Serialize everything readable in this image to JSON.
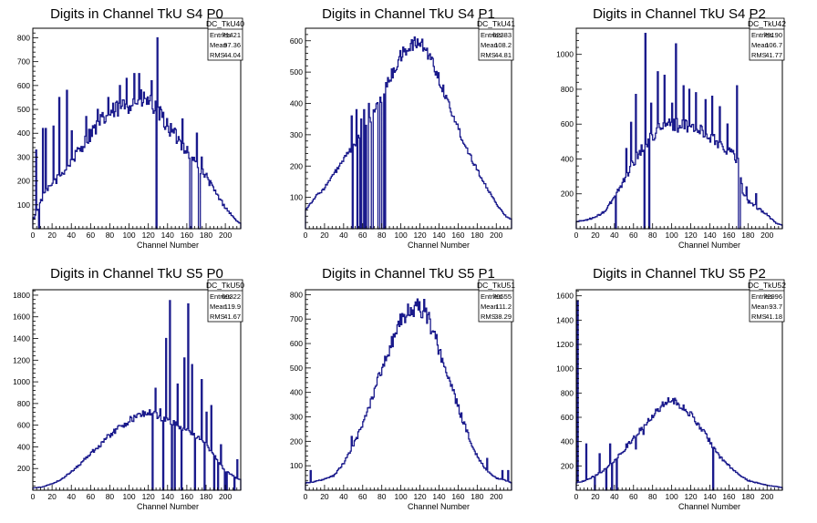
{
  "chart_data": [
    {
      "type": "histogram",
      "title": "Digits in Channel TkU S4 P0",
      "xlabel": "Channel Number",
      "ylabel": "",
      "xlim": [
        0,
        216
      ],
      "ylim": [
        0,
        840
      ],
      "xticks": [
        0,
        20,
        40,
        60,
        80,
        100,
        120,
        140,
        160,
        180,
        200
      ],
      "yticks": [
        100,
        200,
        300,
        400,
        500,
        600,
        700,
        800
      ],
      "stats": {
        "name": "DC_TkU40",
        "rows": [
          [
            "Entries",
            "71421"
          ],
          [
            "Mean",
            "97.36"
          ],
          [
            "RMS",
            "44.04"
          ]
        ]
      },
      "profile": [
        [
          0,
          40
        ],
        [
          5,
          80
        ],
        [
          10,
          130
        ],
        [
          15,
          160
        ],
        [
          20,
          185
        ],
        [
          30,
          230
        ],
        [
          40,
          280
        ],
        [
          50,
          340
        ],
        [
          60,
          400
        ],
        [
          70,
          445
        ],
        [
          80,
          480
        ],
        [
          90,
          505
        ],
        [
          100,
          525
        ],
        [
          110,
          540
        ],
        [
          120,
          535
        ],
        [
          130,
          490
        ],
        [
          140,
          430
        ],
        [
          150,
          380
        ],
        [
          160,
          330
        ],
        [
          170,
          270
        ],
        [
          180,
          220
        ],
        [
          190,
          150
        ],
        [
          200,
          90
        ],
        [
          210,
          40
        ],
        [
          216,
          20
        ]
      ],
      "spikes": [
        [
          3,
          330
        ],
        [
          10,
          420
        ],
        [
          13,
          420
        ],
        [
          21,
          430
        ],
        [
          27,
          550
        ],
        [
          35,
          580
        ],
        [
          40,
          410
        ],
        [
          55,
          470
        ],
        [
          67,
          500
        ],
        [
          78,
          550
        ],
        [
          90,
          600
        ],
        [
          97,
          630
        ],
        [
          105,
          650
        ],
        [
          110,
          650
        ],
        [
          123,
          620
        ],
        [
          129,
          800
        ],
        [
          140,
          430
        ],
        [
          155,
          460
        ],
        [
          170,
          400
        ],
        [
          175,
          300
        ]
      ],
      "dips": [
        [
          1,
          40
        ],
        [
          6,
          0
        ],
        [
          128,
          0
        ],
        [
          163,
          0
        ],
        [
          164,
          0
        ],
        [
          172,
          0
        ],
        [
          173,
          0
        ]
      ],
      "noise": 0.08
    },
    {
      "type": "histogram",
      "title": "Digits in Channel TkU S4 P1",
      "xlabel": "Channel Number",
      "ylabel": "",
      "xlim": [
        0,
        216
      ],
      "ylim": [
        0,
        640
      ],
      "xticks": [
        0,
        20,
        40,
        60,
        80,
        100,
        120,
        140,
        160,
        180,
        200
      ],
      "yticks": [
        100,
        200,
        300,
        400,
        500,
        600
      ],
      "stats": {
        "name": "DC_TkU41",
        "rows": [
          [
            "Entries",
            "62383"
          ],
          [
            "Mean",
            "108.2"
          ],
          [
            "RMS",
            "44.81"
          ]
        ]
      },
      "profile": [
        [
          0,
          60
        ],
        [
          10,
          100
        ],
        [
          20,
          130
        ],
        [
          30,
          175
        ],
        [
          40,
          220
        ],
        [
          50,
          260
        ],
        [
          60,
          310
        ],
        [
          70,
          360
        ],
        [
          80,
          420
        ],
        [
          90,
          490
        ],
        [
          100,
          550
        ],
        [
          110,
          585
        ],
        [
          120,
          595
        ],
        [
          130,
          555
        ],
        [
          140,
          480
        ],
        [
          150,
          400
        ],
        [
          160,
          320
        ],
        [
          170,
          250
        ],
        [
          180,
          190
        ],
        [
          190,
          130
        ],
        [
          200,
          80
        ],
        [
          210,
          40
        ],
        [
          216,
          30
        ]
      ],
      "spikes": [
        [
          48,
          360
        ],
        [
          53,
          380
        ],
        [
          58,
          350
        ],
        [
          61,
          380
        ],
        [
          66,
          400
        ],
        [
          78,
          420
        ],
        [
          82,
          430
        ]
      ],
      "dips": [
        [
          49,
          0
        ],
        [
          54,
          0
        ],
        [
          57,
          0
        ],
        [
          59,
          0
        ],
        [
          60,
          0
        ],
        [
          62,
          0
        ],
        [
          64,
          0
        ],
        [
          65,
          0
        ],
        [
          69,
          0
        ],
        [
          70,
          0
        ],
        [
          76,
          0
        ],
        [
          77,
          0
        ],
        [
          80,
          0
        ],
        [
          81,
          0
        ],
        [
          83,
          0
        ]
      ],
      "noise": 0.04
    },
    {
      "type": "histogram",
      "title": "Digits in Channel TkU S4 P2",
      "xlabel": "Channel Number",
      "ylabel": "",
      "xlim": [
        0,
        216
      ],
      "ylim": [
        0,
        1150
      ],
      "xticks": [
        0,
        20,
        40,
        60,
        80,
        100,
        120,
        140,
        160,
        180,
        200
      ],
      "yticks": [
        200,
        400,
        600,
        800,
        1000
      ],
      "stats": {
        "name": "DC_TkU42",
        "rows": [
          [
            "Entries",
            "79190"
          ],
          [
            "Mean",
            "106.7"
          ],
          [
            "RMS",
            "41.77"
          ]
        ]
      },
      "profile": [
        [
          0,
          40
        ],
        [
          10,
          50
        ],
        [
          20,
          65
        ],
        [
          30,
          100
        ],
        [
          40,
          180
        ],
        [
          50,
          280
        ],
        [
          60,
          380
        ],
        [
          70,
          470
        ],
        [
          80,
          540
        ],
        [
          90,
          580
        ],
        [
          100,
          600
        ],
        [
          110,
          590
        ],
        [
          120,
          580
        ],
        [
          130,
          560
        ],
        [
          140,
          530
        ],
        [
          150,
          490
        ],
        [
          160,
          450
        ],
        [
          170,
          390
        ],
        [
          175,
          200
        ],
        [
          180,
          160
        ],
        [
          190,
          120
        ],
        [
          200,
          80
        ],
        [
          210,
          30
        ],
        [
          216,
          20
        ]
      ],
      "spikes": [
        [
          52,
          460
        ],
        [
          57,
          610
        ],
        [
          62,
          770
        ],
        [
          72,
          1120
        ],
        [
          78,
          720
        ],
        [
          85,
          900
        ],
        [
          92,
          880
        ],
        [
          100,
          720
        ],
        [
          104,
          1060
        ],
        [
          112,
          820
        ],
        [
          118,
          800
        ],
        [
          125,
          780
        ],
        [
          135,
          740
        ],
        [
          142,
          760
        ],
        [
          150,
          700
        ],
        [
          158,
          600
        ],
        [
          168,
          820
        ],
        [
          178,
          240
        ],
        [
          188,
          200
        ]
      ],
      "dips": [
        [
          41,
          0
        ],
        [
          71,
          0
        ],
        [
          76,
          0
        ],
        [
          170,
          0
        ],
        [
          171,
          0
        ]
      ],
      "noise": 0.07
    },
    {
      "type": "histogram",
      "title": "Digits in Channel TkU S5 P0",
      "xlabel": "Channel Number",
      "ylabel": "",
      "xlim": [
        0,
        216
      ],
      "ylim": [
        0,
        1850
      ],
      "xticks": [
        0,
        20,
        40,
        60,
        80,
        100,
        120,
        140,
        160,
        180,
        200
      ],
      "yticks": [
        200,
        400,
        600,
        800,
        1000,
        1200,
        1400,
        1600,
        1800
      ],
      "stats": {
        "name": "DC_TkU50",
        "rows": [
          [
            "Entries",
            "60322"
          ],
          [
            "Mean",
            "119.9"
          ],
          [
            "RMS",
            "41.67"
          ]
        ]
      },
      "profile": [
        [
          0,
          20
        ],
        [
          10,
          30
        ],
        [
          20,
          60
        ],
        [
          30,
          100
        ],
        [
          40,
          170
        ],
        [
          50,
          250
        ],
        [
          60,
          340
        ],
        [
          70,
          420
        ],
        [
          80,
          510
        ],
        [
          90,
          580
        ],
        [
          100,
          640
        ],
        [
          110,
          690
        ],
        [
          120,
          720
        ],
        [
          125,
          710
        ],
        [
          130,
          680
        ],
        [
          140,
          640
        ],
        [
          150,
          600
        ],
        [
          160,
          560
        ],
        [
          170,
          500
        ],
        [
          180,
          420
        ],
        [
          190,
          300
        ],
        [
          200,
          180
        ],
        [
          210,
          120
        ],
        [
          216,
          100
        ]
      ],
      "spikes": [
        [
          127,
          940
        ],
        [
          132,
          750
        ],
        [
          138,
          1400
        ],
        [
          142,
          1750
        ],
        [
          150,
          980
        ],
        [
          157,
          1220
        ],
        [
          161,
          1720
        ],
        [
          165,
          1160
        ],
        [
          175,
          1020
        ],
        [
          180,
          720
        ],
        [
          185,
          780
        ],
        [
          195,
          420
        ],
        [
          212,
          280
        ]
      ],
      "dips": [
        [
          124,
          0
        ],
        [
          135,
          0
        ],
        [
          144,
          0
        ],
        [
          147,
          0
        ],
        [
          154,
          0
        ],
        [
          168,
          0
        ],
        [
          178,
          0
        ],
        [
          188,
          0
        ],
        [
          192,
          0
        ],
        [
          199,
          0
        ],
        [
          201,
          0
        ],
        [
          209,
          0
        ]
      ],
      "noise": 0.05
    },
    {
      "type": "histogram",
      "title": "Digits in Channel TkU S5 P1",
      "xlabel": "Channel Number",
      "ylabel": "",
      "xlim": [
        0,
        216
      ],
      "ylim": [
        0,
        820
      ],
      "xticks": [
        0,
        20,
        40,
        60,
        80,
        100,
        120,
        140,
        160,
        180,
        200
      ],
      "yticks": [
        100,
        200,
        300,
        400,
        500,
        600,
        700,
        800
      ],
      "stats": {
        "name": "DC_TkU51",
        "rows": [
          [
            "Entries",
            "70555"
          ],
          [
            "Mean",
            "111.2"
          ],
          [
            "RMS",
            "38.29"
          ]
        ]
      },
      "profile": [
        [
          0,
          30
        ],
        [
          10,
          35
        ],
        [
          20,
          45
        ],
        [
          30,
          60
        ],
        [
          40,
          110
        ],
        [
          50,
          180
        ],
        [
          60,
          270
        ],
        [
          70,
          380
        ],
        [
          80,
          500
        ],
        [
          90,
          600
        ],
        [
          100,
          680
        ],
        [
          110,
          740
        ],
        [
          120,
          750
        ],
        [
          130,
          690
        ],
        [
          140,
          580
        ],
        [
          150,
          460
        ],
        [
          160,
          340
        ],
        [
          170,
          230
        ],
        [
          180,
          140
        ],
        [
          190,
          80
        ],
        [
          200,
          50
        ],
        [
          210,
          40
        ],
        [
          216,
          30
        ]
      ],
      "spikes": [
        [
          5,
          80
        ],
        [
          48,
          220
        ],
        [
          99,
          720
        ],
        [
          115,
          770
        ],
        [
          124,
          780
        ],
        [
          130,
          700
        ],
        [
          136,
          620
        ],
        [
          190,
          130
        ],
        [
          206,
          80
        ],
        [
          212,
          80
        ]
      ],
      "dips": [],
      "noise": 0.05
    },
    {
      "type": "histogram",
      "title": "Digits in Channel TkU S5 P2",
      "xlabel": "Channel Number",
      "ylabel": "",
      "xlim": [
        0,
        216
      ],
      "ylim": [
        0,
        1650
      ],
      "xticks": [
        0,
        20,
        40,
        60,
        80,
        100,
        120,
        140,
        160,
        180,
        200
      ],
      "yticks": [
        200,
        400,
        600,
        800,
        1000,
        1200,
        1400,
        1600
      ],
      "stats": {
        "name": "DC_TkU52",
        "rows": [
          [
            "Entries",
            "72996"
          ],
          [
            "Mean",
            "93.7"
          ],
          [
            "RMS",
            "41.18"
          ]
        ]
      },
      "profile": [
        [
          0,
          60
        ],
        [
          10,
          80
        ],
        [
          20,
          120
        ],
        [
          30,
          170
        ],
        [
          40,
          240
        ],
        [
          50,
          330
        ],
        [
          60,
          430
        ],
        [
          70,
          530
        ],
        [
          80,
          620
        ],
        [
          90,
          700
        ],
        [
          100,
          740
        ],
        [
          110,
          700
        ],
        [
          120,
          620
        ],
        [
          130,
          520
        ],
        [
          140,
          400
        ],
        [
          150,
          280
        ],
        [
          160,
          200
        ],
        [
          170,
          130
        ],
        [
          180,
          80
        ],
        [
          190,
          60
        ],
        [
          200,
          40
        ],
        [
          210,
          30
        ],
        [
          216,
          20
        ]
      ],
      "spikes": [
        [
          1,
          1560
        ],
        [
          10,
          380
        ],
        [
          24,
          300
        ],
        [
          35,
          380
        ],
        [
          45,
          300
        ],
        [
          52,
          380
        ],
        [
          62,
          340
        ],
        [
          70,
          460
        ],
        [
          96,
          760
        ],
        [
          104,
          740
        ]
      ],
      "dips": [
        [
          19,
          0
        ],
        [
          31,
          0
        ],
        [
          37,
          0
        ],
        [
          42,
          0
        ],
        [
          143,
          0
        ]
      ],
      "noise": 0.05
    }
  ]
}
